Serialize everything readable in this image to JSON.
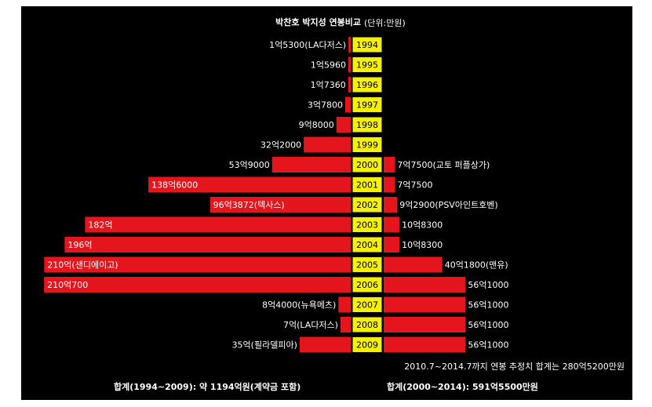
{
  "chart_data": {
    "type": "butterfly-bar",
    "title": "박찬호 박지성 연봉비교",
    "subtitle": "(단위:만원)",
    "categories": [
      "1994",
      "1995",
      "1996",
      "1997",
      "1998",
      "1999",
      "2000",
      "2001",
      "2002",
      "2003",
      "2004",
      "2005",
      "2006",
      "2007",
      "2008",
      "2009"
    ],
    "xlim": [
      0,
      2150000
    ],
    "series": [
      {
        "color": "#e5151d",
        "values": [
          15300,
          15960,
          17360,
          37800,
          98000,
          322000,
          539000,
          1386000,
          963872,
          1820000,
          1960000,
          2100000,
          2100700,
          84000,
          70000,
          350000
        ],
        "value_labels": [
          "1억5300(LA다저스)",
          "1억5960",
          "1억7360",
          "3억7800",
          "9억8000",
          "32억2000",
          "53억9000",
          "138억6000",
          "96억3872(텍사스)",
          "182억",
          "196억",
          "210억(샌디에이고)",
          "210억700",
          "8억4000(뉴욕메츠)",
          "7억(LA다저스)",
          "35억(필라델피아)"
        ]
      },
      {
        "color": "#e5151d",
        "values": [
          null,
          null,
          null,
          null,
          null,
          null,
          77500,
          77500,
          92900,
          108300,
          108300,
          401800,
          561000,
          561000,
          561000,
          561000
        ],
        "value_labels": [
          null,
          null,
          null,
          null,
          null,
          null,
          "7억7500(교토 퍼플상가)",
          "7억7500",
          "9억2900(PSV아인트호벤)",
          "10억8300",
          "10억8300",
          "40억1800(맨유)",
          "56억1000",
          "56억1000",
          "56억1000",
          "56억1000"
        ]
      }
    ],
    "year_box_color": "#f4f00c",
    "annotations": [
      "2010.7~2014.7까지 연봉 추정치 합계는 280억5200만원",
      "합계(1994~2009): 약 1194억원(계약금 포함)",
      "합계(2000~2014): 591억5500만원"
    ]
  }
}
